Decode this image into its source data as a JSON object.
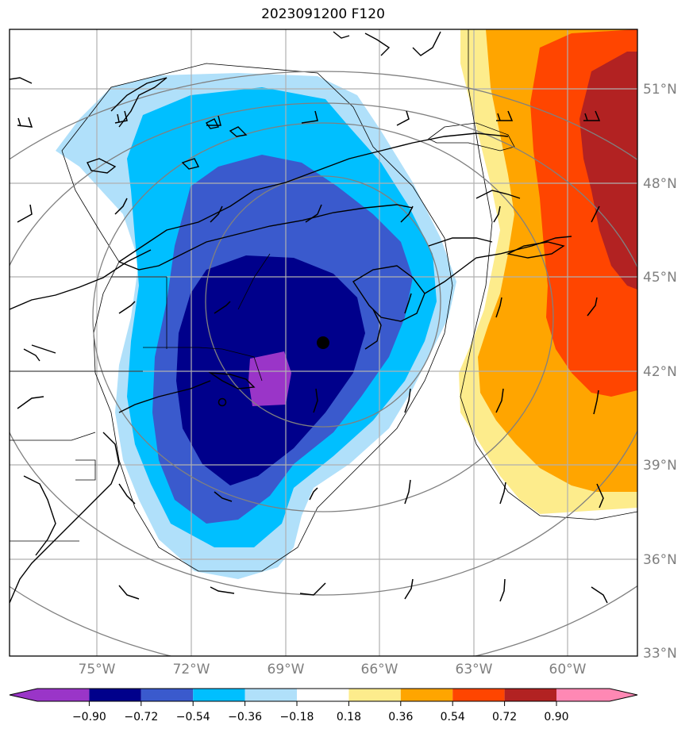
{
  "title": "2023091200 F120",
  "lat_labels": [
    "51°N",
    "48°N",
    "45°N",
    "42°N",
    "39°N",
    "36°N",
    "33°N"
  ],
  "lon_labels": [
    "75°W",
    "72°W",
    "69°W",
    "66°W",
    "63°W",
    "60°W"
  ],
  "colorbar": {
    "labels": [
      "−0.90",
      "−0.72",
      "−0.54",
      "−0.36",
      "−0.18",
      "0.18",
      "0.36",
      "0.54",
      "0.72",
      "0.90"
    ],
    "colors": [
      "#9a35c8",
      "#00008b",
      "#3a5acd",
      "#00bfff",
      "#b0e0fa",
      "#ffffff",
      "#fdec8c",
      "#ffa500",
      "#ff4500",
      "#b22222",
      "#ff88b4"
    ],
    "extend": "both"
  },
  "fill_colors": {
    "light_blue": "#b0e0fa",
    "sky_blue": "#00bfff",
    "royal_blue": "#3a5acd",
    "navy": "#00008b",
    "purple": "#9a35c8",
    "light_yellow": "#fdec8c",
    "orange": "#ffa500",
    "red_orange": "#ff4500",
    "firebrick": "#b22222"
  },
  "map_features": [
    "coastlines",
    "state-borders",
    "wind-barbs",
    "range-rings",
    "gridlines"
  ],
  "grid": true
}
